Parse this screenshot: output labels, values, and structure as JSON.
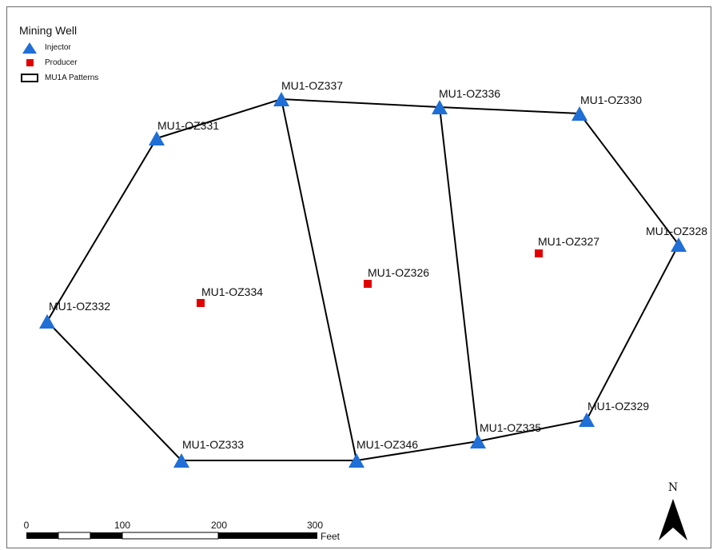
{
  "legend": {
    "title": "Mining Well",
    "items": [
      {
        "label": "Injector",
        "symbol": "blue-triangle"
      },
      {
        "label": "Producer",
        "symbol": "red-square"
      },
      {
        "label": "MU1A Patterns",
        "symbol": "black-outline-rectangle"
      }
    ]
  },
  "colors": {
    "injector": "#1f6fd6",
    "producer": "#e00000",
    "pattern_line": "#000000"
  },
  "wells": {
    "injectors": [
      "MU1-OZ331",
      "MU1-OZ337",
      "MU1-OZ336",
      "MU1-OZ330",
      "MU1-OZ328",
      "MU1-OZ332",
      "MU1-OZ333",
      "MU1-OZ346",
      "MU1-OZ335",
      "MU1-OZ329"
    ],
    "producers": [
      "MU1-OZ334",
      "MU1-OZ326",
      "MU1-OZ327"
    ]
  },
  "scale_bar": {
    "ticks": [
      "0",
      "100",
      "200",
      "300"
    ],
    "unit": "Feet"
  },
  "north_arrow": {
    "label": "N"
  }
}
